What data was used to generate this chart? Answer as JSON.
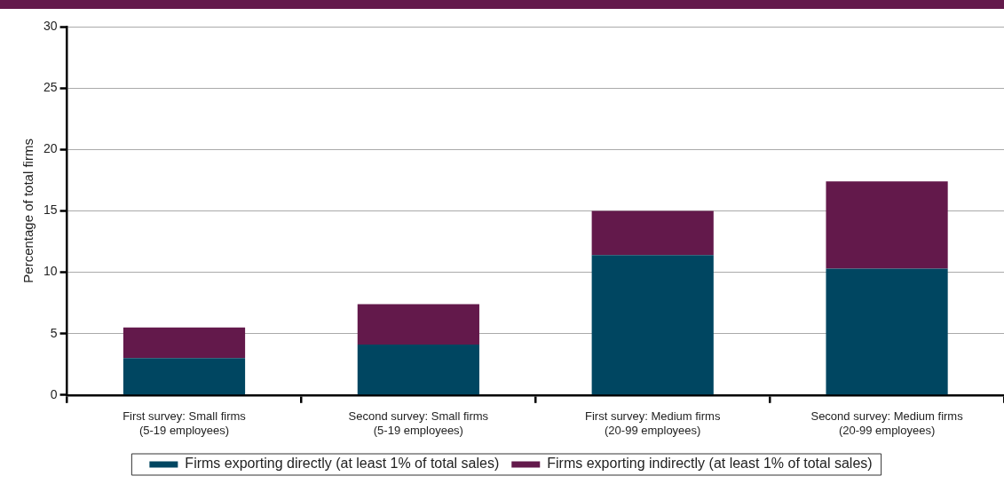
{
  "chart_data": {
    "type": "bar",
    "stacked": true,
    "ylabel": "Percentage of total firms",
    "categories": [
      "First survey: Small firms\n(5-19 employees)",
      "Second survey: Small firms\n(5-19 employees)",
      "First survey: Medium firms\n(20-99 employees)",
      "Second survey: Medium firms\n(20-99 employees)"
    ],
    "series": [
      {
        "name": "Firms exporting directly (at least 1% of total sales)",
        "color": "#004661",
        "values": [
          3.0,
          4.1,
          11.4,
          10.3
        ]
      },
      {
        "name": "Firms exporting indirectly (at least 1% of total sales)",
        "color": "#63194b",
        "values": [
          2.5,
          3.3,
          3.6,
          7.1
        ]
      }
    ],
    "ylim": [
      0,
      30
    ],
    "yticks": [
      0,
      5,
      10,
      15,
      20,
      25,
      30
    ],
    "grid": "y",
    "legend": "bottom"
  }
}
